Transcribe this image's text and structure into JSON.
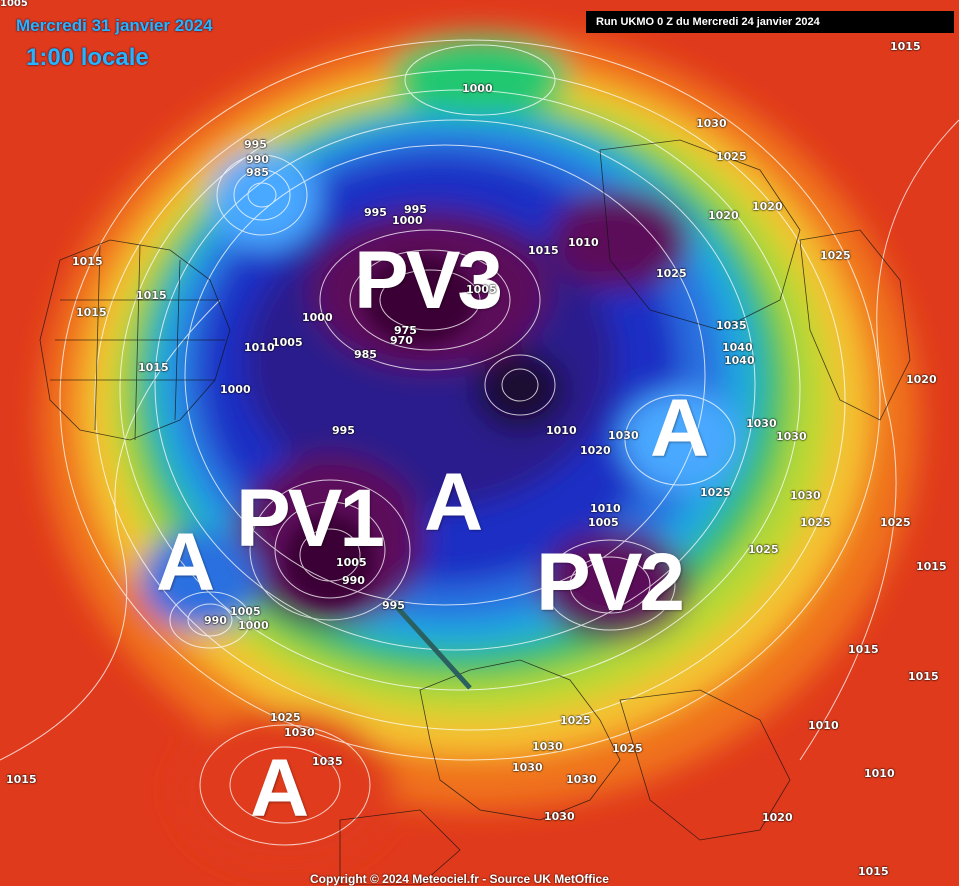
{
  "header": {
    "date": "Mercredi 31 janvier 2024",
    "local_time": "1:00 locale",
    "run": "Run UKMO 0 Z du Mercredi 24 janvier 2024"
  },
  "footer": {
    "copyright": "Copyright © 2024 Meteociel.fr - Source UK MetOffice"
  },
  "labels": {
    "pv1": "PV1",
    "pv2": "PV2",
    "pv3": "PV3",
    "high_west": "A",
    "high_center": "A",
    "high_east": "A",
    "high_south": "A"
  },
  "corner_value": "1005",
  "isobars": [
    "1000",
    "1030",
    "1015",
    "1025",
    "995",
    "990",
    "985",
    "995",
    "1000",
    "995",
    "1020",
    "1020",
    "1010",
    "1015",
    "1025",
    "1025",
    "1005",
    "1015",
    "1015",
    "1015",
    "1000",
    "975",
    "970",
    "985",
    "1005",
    "1010",
    "1035",
    "1040",
    "1040",
    "1015",
    "1020",
    "995",
    "1010",
    "1030",
    "1030",
    "1030",
    "1020",
    "1025",
    "1030",
    "1025",
    "1025",
    "1015",
    "1000",
    "1010",
    "1005",
    "1025",
    "1015",
    "990",
    "1005",
    "990",
    "1000",
    "1025",
    "1030",
    "1035",
    "1025",
    "1025",
    "1030",
    "1030",
    "1030",
    "1015",
    "1020",
    "1010",
    "1010",
    "1015",
    "1015",
    "995",
    "1005",
    "1030"
  ],
  "colors": {
    "ocean_red": "#e23a1e",
    "title_blue": "#26b4ff",
    "low_purple": "#5c0f5a"
  }
}
